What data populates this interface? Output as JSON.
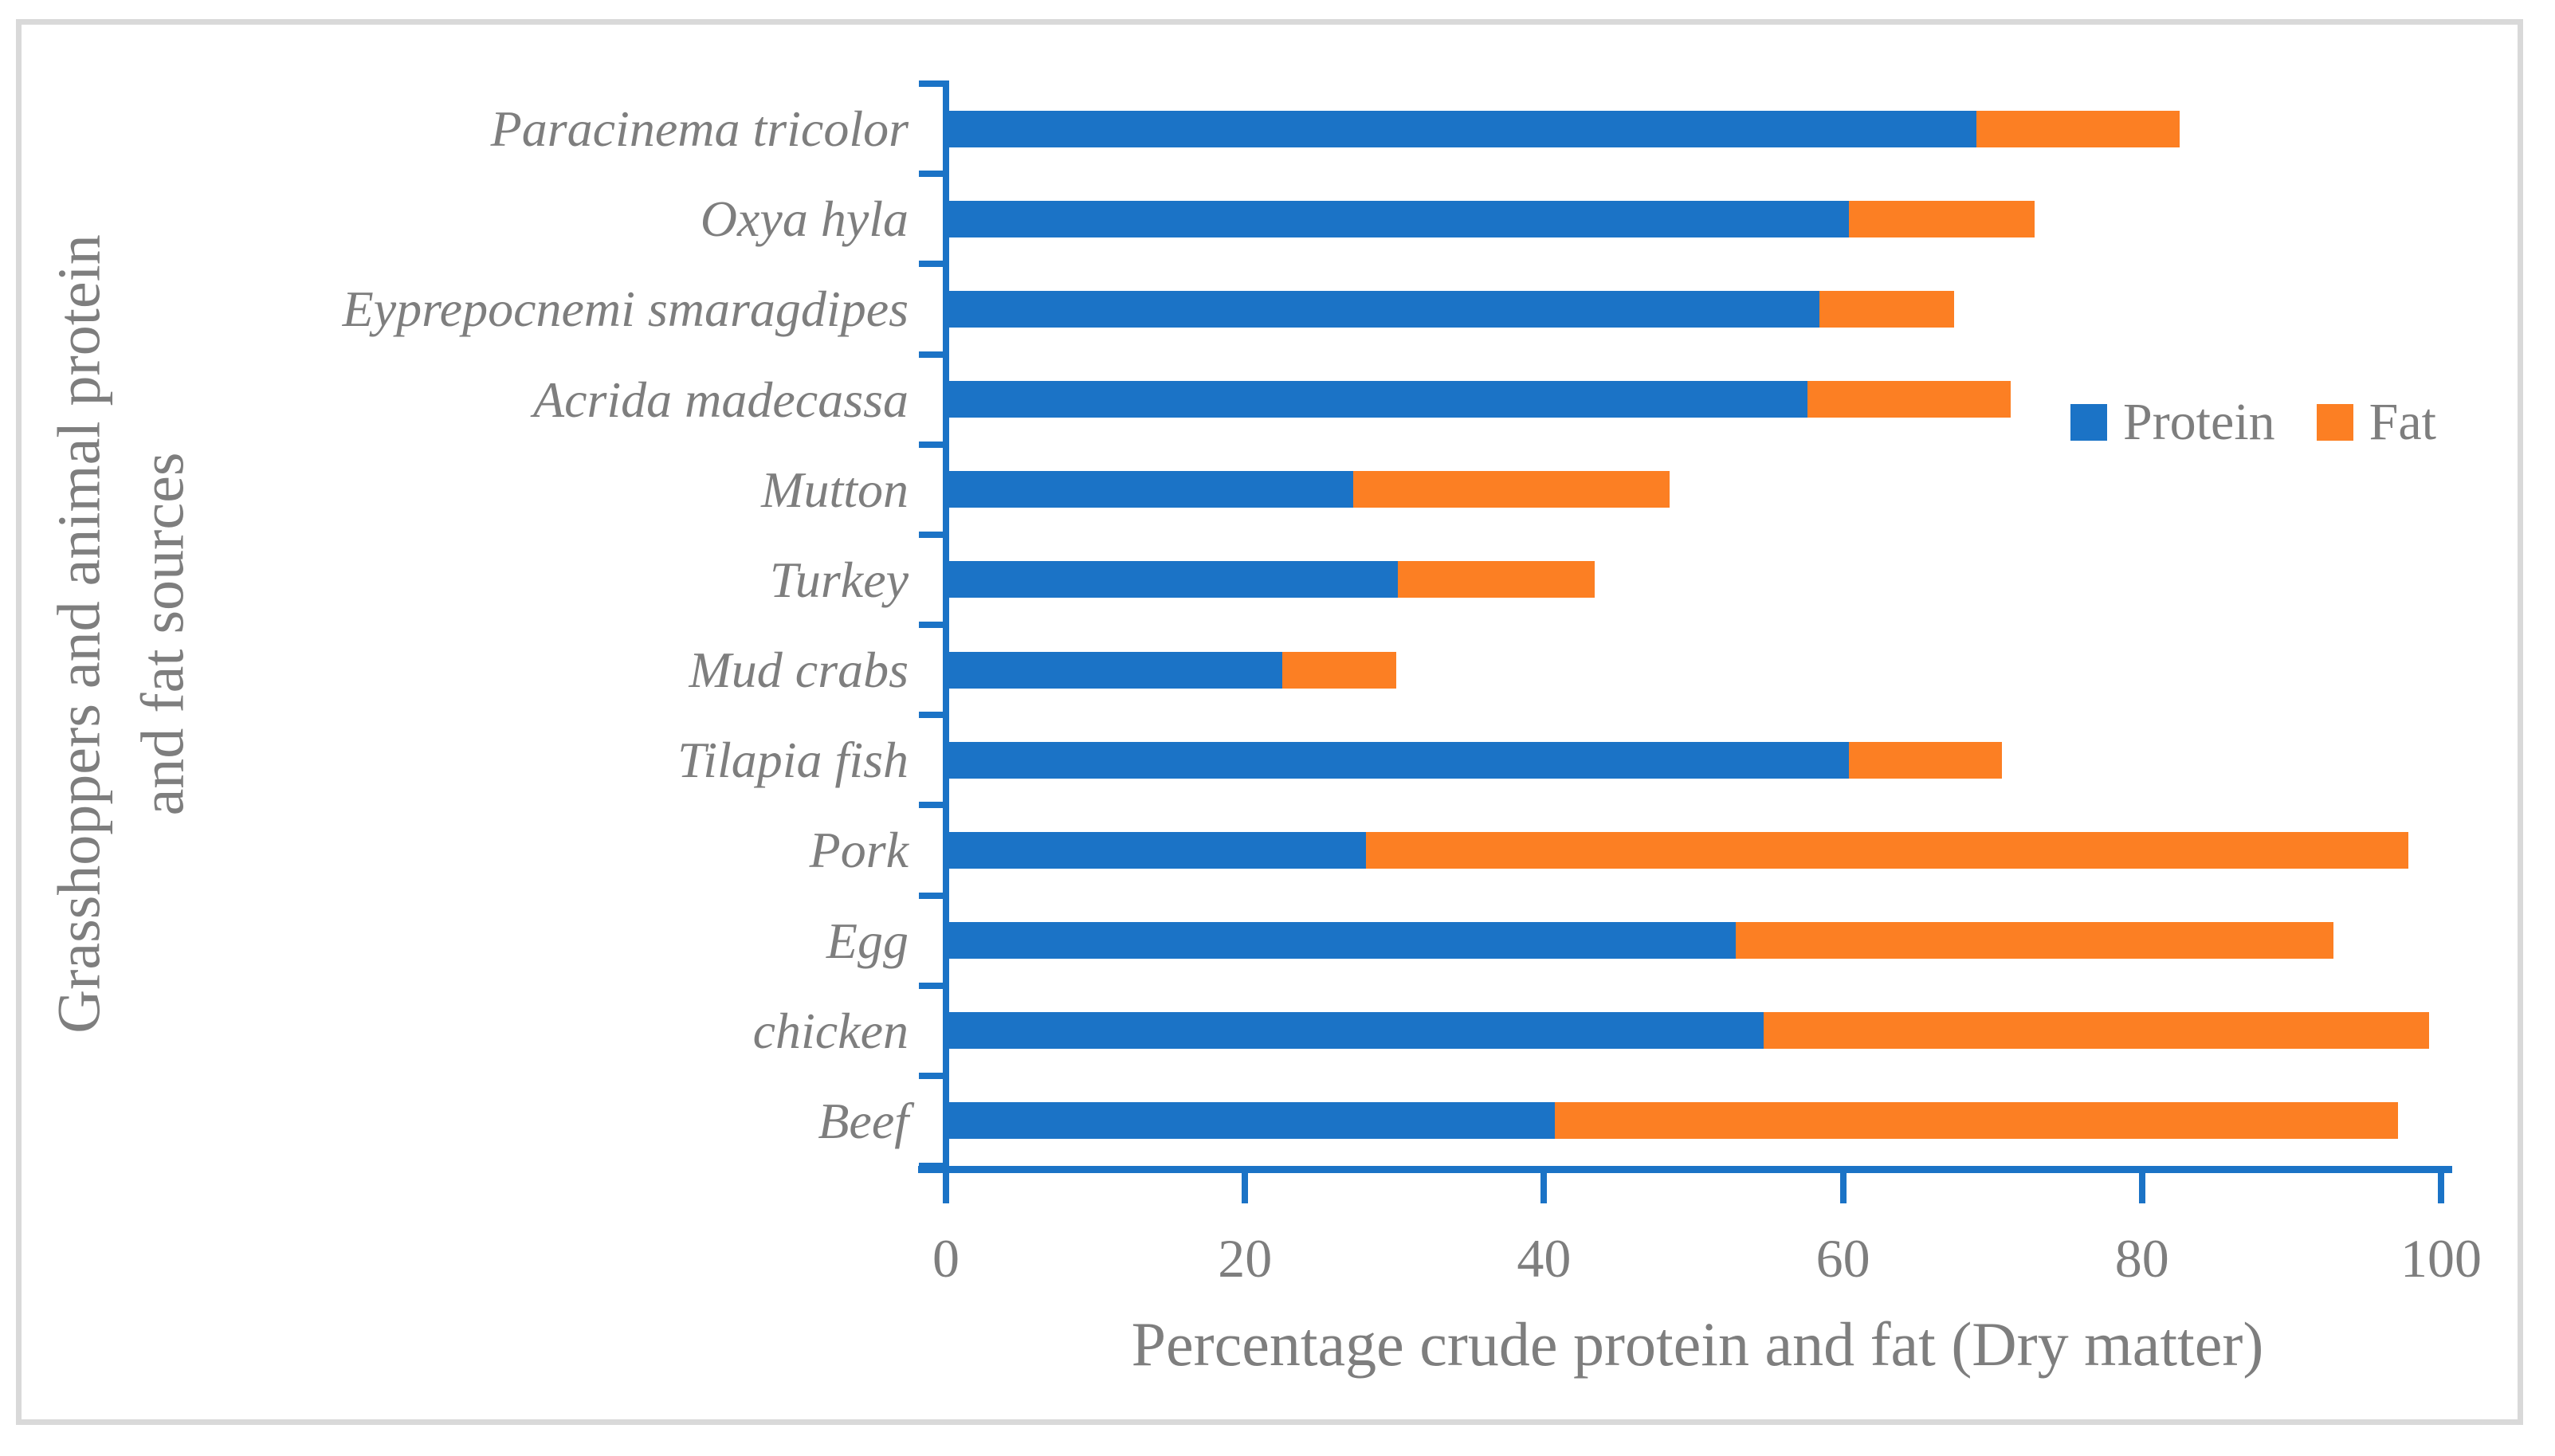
{
  "chart_data": {
    "type": "bar",
    "orientation": "horizontal",
    "stacked": true,
    "categories": [
      "Paracinema tricolor",
      "Oxya hyla",
      "Eyprepocnemi smaragdipes",
      "Acrida madecassa",
      "Mutton",
      "Turkey",
      "Mud crabs",
      "Tilapia fish",
      "Pork",
      "Egg",
      "chicken",
      "Beef"
    ],
    "series": [
      {
        "name": "Protein",
        "color": "#1b73c6",
        "values": [
          68.7,
          60.2,
          58.2,
          57.4,
          27.0,
          30.0,
          22.3,
          60.2,
          27.9,
          52.6,
          54.5,
          40.5
        ]
      },
      {
        "name": "Fat",
        "color": "#fc7f23",
        "values": [
          13.6,
          12.4,
          9.0,
          13.6,
          21.2,
          13.2,
          7.6,
          10.2,
          69.7,
          40.0,
          44.5,
          56.4
        ]
      }
    ],
    "xlabel": "Percentage crude protein and fat (Dry matter)",
    "ylabel_line1": "Grasshoppers and animal protein",
    "ylabel_line2": "and fat sources",
    "xlim": [
      0,
      100
    ],
    "x_ticks": [
      0,
      20,
      40,
      60,
      80,
      100
    ],
    "grid": false,
    "legend_position": "right-middle",
    "axis_color": "#1b73c6",
    "text_color": "#7e7e7e"
  }
}
